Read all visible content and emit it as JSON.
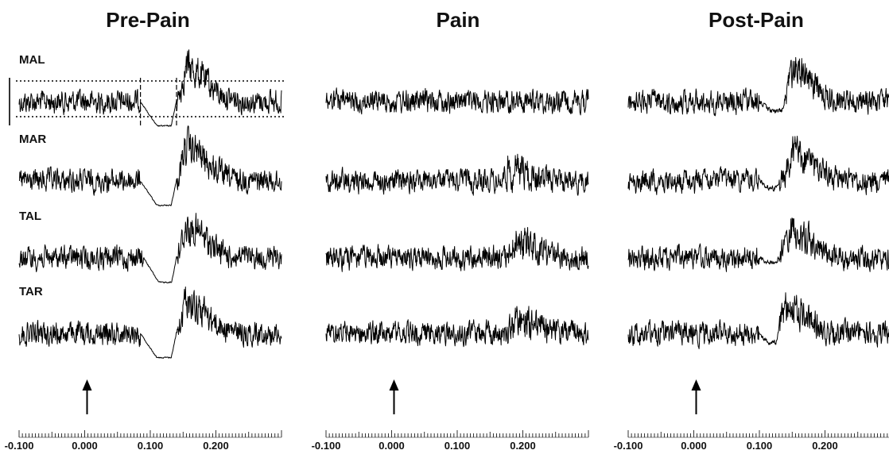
{
  "chart_data": {
    "type": "line",
    "x_unit": "s",
    "xlim": [
      -0.1,
      0.3
    ],
    "x_major_ticks": [
      -0.1,
      0.0,
      0.1,
      0.2
    ],
    "x_tick_labels": [
      "-0.100",
      "0.000",
      "0.100",
      "0.200"
    ],
    "stimulus_marker_x": 0.0,
    "panels": [
      {
        "title": "Pre-Pain",
        "traces": [
          {
            "name": "MAL",
            "suppression": [
              0.085,
              0.14
            ],
            "suppression_depth": 1.0,
            "rebound_peak": 0.155,
            "rebound_height": 1.0
          },
          {
            "name": "MAR",
            "suppression": [
              0.085,
              0.14
            ],
            "suppression_depth": 1.0,
            "rebound_peak": 0.155,
            "rebound_height": 1.0
          },
          {
            "name": "TAL",
            "suppression": [
              0.09,
              0.14
            ],
            "suppression_depth": 1.0,
            "rebound_peak": 0.155,
            "rebound_height": 0.9
          },
          {
            "name": "TAR",
            "suppression": [
              0.085,
              0.14
            ],
            "suppression_depth": 1.0,
            "rebound_peak": 0.155,
            "rebound_height": 1.0
          }
        ],
        "threshold_lines": {
          "trace": "MAL",
          "x_window": [
            0.085,
            0.14
          ]
        }
      },
      {
        "title": "Pain",
        "traces": [
          {
            "name": "",
            "suppression": null,
            "suppression_depth": 0,
            "rebound_peak": null,
            "rebound_height": 0
          },
          {
            "name": "",
            "suppression": null,
            "suppression_depth": 0,
            "rebound_peak": 0.18,
            "rebound_height": 0.3
          },
          {
            "name": "",
            "suppression": null,
            "suppression_depth": 0,
            "rebound_peak": 0.19,
            "rebound_height": 0.5
          },
          {
            "name": "",
            "suppression": null,
            "suppression_depth": 0,
            "rebound_peak": 0.19,
            "rebound_height": 0.4
          }
        ]
      },
      {
        "title": "Post-Pain",
        "traces": [
          {
            "name": "",
            "suppression": [
              0.1,
              0.14
            ],
            "suppression_depth": 0.4,
            "rebound_peak": 0.15,
            "rebound_height": 0.9
          },
          {
            "name": "",
            "suppression": [
              0.1,
              0.13
            ],
            "suppression_depth": 0.3,
            "rebound_peak": 0.15,
            "rebound_height": 0.8
          },
          {
            "name": "",
            "suppression": [
              0.1,
              0.13
            ],
            "suppression_depth": 0.2,
            "rebound_peak": 0.145,
            "rebound_height": 0.9
          },
          {
            "name": "",
            "suppression": [
              0.1,
              0.13
            ],
            "suppression_depth": 0.4,
            "rebound_peak": 0.14,
            "rebound_height": 0.8
          }
        ]
      }
    ]
  }
}
